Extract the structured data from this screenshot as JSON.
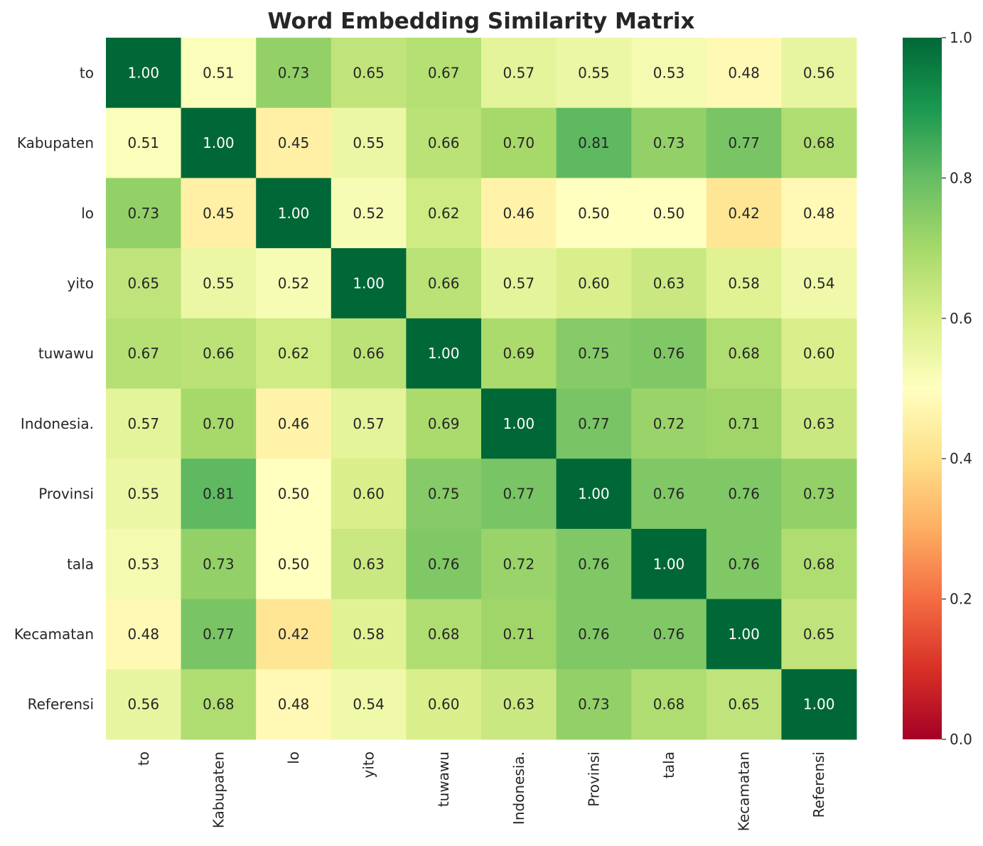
{
  "chart_data": {
    "type": "heatmap",
    "title": "Word Embedding Similarity Matrix",
    "xlabel": "",
    "ylabel": "",
    "x_labels": [
      "to",
      "Kabupaten",
      "lo",
      "yito",
      "tuwawu",
      "Indonesia.",
      "Provinsi",
      "tala",
      "Kecamatan",
      "Referensi"
    ],
    "y_labels": [
      "to",
      "Kabupaten",
      "lo",
      "yito",
      "tuwawu",
      "Indonesia.",
      "Provinsi",
      "tala",
      "Kecamatan",
      "Referensi"
    ],
    "values": [
      [
        1.0,
        0.51,
        0.73,
        0.65,
        0.67,
        0.57,
        0.55,
        0.53,
        0.48,
        0.56
      ],
      [
        0.51,
        1.0,
        0.45,
        0.55,
        0.66,
        0.7,
        0.81,
        0.73,
        0.77,
        0.68
      ],
      [
        0.73,
        0.45,
        1.0,
        0.52,
        0.62,
        0.46,
        0.5,
        0.5,
        0.42,
        0.48
      ],
      [
        0.65,
        0.55,
        0.52,
        1.0,
        0.66,
        0.57,
        0.6,
        0.63,
        0.58,
        0.54
      ],
      [
        0.67,
        0.66,
        0.62,
        0.66,
        1.0,
        0.69,
        0.75,
        0.76,
        0.68,
        0.6
      ],
      [
        0.57,
        0.7,
        0.46,
        0.57,
        0.69,
        1.0,
        0.77,
        0.72,
        0.71,
        0.63
      ],
      [
        0.55,
        0.81,
        0.5,
        0.6,
        0.75,
        0.77,
        1.0,
        0.76,
        0.76,
        0.73
      ],
      [
        0.53,
        0.73,
        0.5,
        0.63,
        0.76,
        0.72,
        0.76,
        1.0,
        0.76,
        0.68
      ],
      [
        0.48,
        0.77,
        0.42,
        0.58,
        0.68,
        0.71,
        0.76,
        0.76,
        1.0,
        0.65
      ],
      [
        0.56,
        0.68,
        0.48,
        0.54,
        0.6,
        0.63,
        0.73,
        0.68,
        0.65,
        1.0
      ]
    ],
    "annotation_format": "0.00",
    "colormap": "RdYlGn",
    "vmin": 0.0,
    "vmax": 1.0,
    "colorbar": {
      "ticks": [
        "0.0",
        "0.2",
        "0.4",
        "0.6",
        "0.8",
        "1.0"
      ],
      "placement": "right"
    },
    "grid": false
  }
}
